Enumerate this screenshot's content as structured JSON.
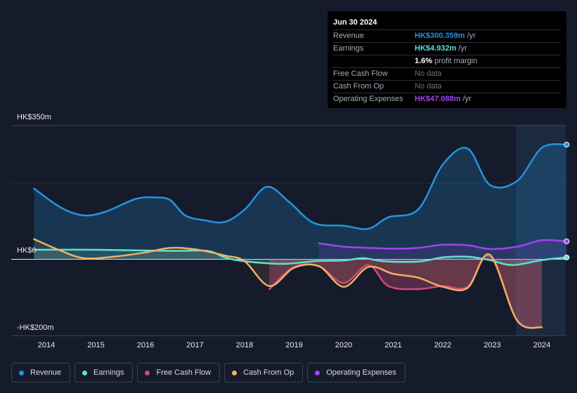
{
  "chart_data": {
    "type": "line",
    "x_ticks": [
      "2014",
      "2015",
      "2016",
      "2017",
      "2018",
      "2019",
      "2020",
      "2021",
      "2022",
      "2023",
      "2024"
    ],
    "y_labels": {
      "top": "HK$350m",
      "zero": "HK$0",
      "bottom": "-HK$200m"
    },
    "ylim": [
      -200,
      350
    ],
    "series": [
      {
        "key": "revenue",
        "name": "Revenue",
        "color": "#2394df",
        "points": [
          [
            2013.75,
            185
          ],
          [
            2014.3,
            135
          ],
          [
            2014.75,
            115
          ],
          [
            2015.2,
            125
          ],
          [
            2015.8,
            158
          ],
          [
            2016.2,
            162
          ],
          [
            2016.5,
            155
          ],
          [
            2016.8,
            115
          ],
          [
            2017.2,
            102
          ],
          [
            2017.6,
            98
          ],
          [
            2018.0,
            130
          ],
          [
            2018.45,
            190
          ],
          [
            2018.9,
            150
          ],
          [
            2019.4,
            95
          ],
          [
            2020.0,
            88
          ],
          [
            2020.5,
            80
          ],
          [
            2020.9,
            110
          ],
          [
            2021.5,
            130
          ],
          [
            2022.0,
            248
          ],
          [
            2022.5,
            290
          ],
          [
            2022.95,
            195
          ],
          [
            2023.5,
            205
          ],
          [
            2024.0,
            292
          ],
          [
            2024.5,
            300.359
          ]
        ]
      },
      {
        "key": "earnings",
        "name": "Earnings",
        "color": "#5ee0cf",
        "points": [
          [
            2013.75,
            25
          ],
          [
            2015.0,
            25
          ],
          [
            2016.5,
            22
          ],
          [
            2017.25,
            22
          ],
          [
            2017.6,
            5
          ],
          [
            2018.0,
            -5
          ],
          [
            2018.8,
            -12
          ],
          [
            2019.4,
            -5
          ],
          [
            2020.0,
            -3
          ],
          [
            2020.4,
            3
          ],
          [
            2020.8,
            -5
          ],
          [
            2021.5,
            -6
          ],
          [
            2022.0,
            5
          ],
          [
            2022.5,
            7
          ],
          [
            2022.95,
            -2
          ],
          [
            2023.4,
            -15
          ],
          [
            2024.0,
            -2
          ],
          [
            2024.5,
            4.932
          ]
        ]
      },
      {
        "key": "fcf",
        "name": "Free Cash Flow",
        "color": "#d04a7d",
        "points": [
          [
            2018.5,
            -78
          ],
          [
            2019.0,
            -20
          ],
          [
            2019.5,
            -18
          ],
          [
            2020.0,
            -62
          ],
          [
            2020.5,
            -15
          ],
          [
            2020.9,
            -70
          ],
          [
            2021.5,
            -78
          ],
          [
            2022.0,
            -70
          ],
          [
            2022.5,
            -72
          ],
          [
            2022.95,
            10
          ],
          [
            2023.5,
            -160
          ],
          [
            2024.0,
            -178
          ]
        ]
      },
      {
        "key": "cfo",
        "name": "Cash From Op",
        "color": "#f0b060",
        "points": [
          [
            2013.75,
            53
          ],
          [
            2014.3,
            22
          ],
          [
            2014.75,
            3
          ],
          [
            2015.3,
            6
          ],
          [
            2016.0,
            18
          ],
          [
            2016.5,
            30
          ],
          [
            2017.0,
            26
          ],
          [
            2017.6,
            10
          ],
          [
            2018.0,
            -5
          ],
          [
            2018.5,
            -70
          ],
          [
            2019.0,
            -22
          ],
          [
            2019.5,
            -18
          ],
          [
            2020.0,
            -72
          ],
          [
            2020.5,
            -20
          ],
          [
            2021.0,
            -38
          ],
          [
            2021.5,
            -48
          ],
          [
            2022.0,
            -72
          ],
          [
            2022.5,
            -75
          ],
          [
            2022.95,
            12
          ],
          [
            2023.5,
            -160
          ],
          [
            2024.0,
            -178
          ]
        ]
      },
      {
        "key": "opex",
        "name": "Operating Expenses",
        "color": "#a044ea",
        "points": [
          [
            2019.5,
            42
          ],
          [
            2020.0,
            33
          ],
          [
            2020.5,
            30
          ],
          [
            2021.0,
            28
          ],
          [
            2021.5,
            30
          ],
          [
            2022.0,
            38
          ],
          [
            2022.5,
            37
          ],
          [
            2022.95,
            27
          ],
          [
            2023.5,
            33
          ],
          [
            2024.0,
            50
          ],
          [
            2024.5,
            47.088
          ]
        ]
      }
    ]
  },
  "tooltip": {
    "date": "Jun 30 2024",
    "rows": [
      {
        "label": "Revenue",
        "value": "HK$300.359m",
        "unit": "/yr",
        "color": "#2394df"
      },
      {
        "label": "Earnings",
        "value": "HK$4.932m",
        "unit": "/yr",
        "color": "#5ee0cf"
      },
      {
        "label": "",
        "value": "1.6%",
        "unit": "profit margin",
        "color": "#ffffff"
      },
      {
        "label": "Free Cash Flow",
        "value": "No data",
        "unit": "",
        "color": "nodata"
      },
      {
        "label": "Cash From Op",
        "value": "No data",
        "unit": "",
        "color": "nodata"
      },
      {
        "label": "Operating Expenses",
        "value": "HK$47.088m",
        "unit": "/yr",
        "color": "#a044ea"
      }
    ]
  },
  "legend": [
    {
      "label": "Revenue",
      "color": "#2394df"
    },
    {
      "label": "Earnings",
      "color": "#5ee0cf"
    },
    {
      "label": "Free Cash Flow",
      "color": "#d04a7d"
    },
    {
      "label": "Cash From Op",
      "color": "#f0b060"
    },
    {
      "label": "Operating Expenses",
      "color": "#a044ea"
    }
  ]
}
